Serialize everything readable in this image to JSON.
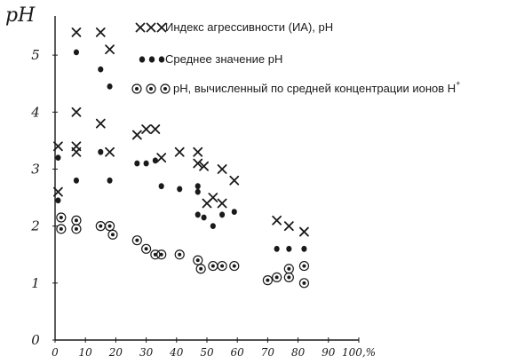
{
  "chart_data": {
    "type": "scatter",
    "ylabel": "pH",
    "xlabel": "",
    "x_unit": "%",
    "xlim": [
      0,
      100
    ],
    "ylim": [
      0,
      5.5
    ],
    "x_ticks": [
      0,
      10,
      20,
      30,
      40,
      50,
      60,
      70,
      80,
      90,
      100
    ],
    "x_tick_labels": [
      "0",
      "10",
      "20",
      "30",
      "40",
      "50",
      "60",
      "70",
      "80",
      "90",
      "100,%"
    ],
    "y_ticks": [
      0,
      1,
      2,
      3,
      4,
      5
    ],
    "y_tick_labels": [
      "0",
      "1",
      "2",
      "3",
      "4",
      "5"
    ],
    "grid": false,
    "legend_position": "top-right",
    "series": [
      {
        "name": "Индекс агрессивности (ИА), pH",
        "marker": "x",
        "points": [
          [
            1,
            3.4
          ],
          [
            1,
            2.6
          ],
          [
            7,
            5.4
          ],
          [
            7,
            4
          ],
          [
            7,
            3.3
          ],
          [
            7,
            3.4
          ],
          [
            15,
            5.4
          ],
          [
            15,
            3.8
          ],
          [
            18,
            5.1
          ],
          [
            18,
            3.3
          ],
          [
            27,
            3.6
          ],
          [
            30,
            3.7
          ],
          [
            33,
            3.7
          ],
          [
            35,
            3.2
          ],
          [
            41,
            3.3
          ],
          [
            47,
            3.3
          ],
          [
            47,
            3.1
          ],
          [
            49,
            3.05
          ],
          [
            52,
            2.5
          ],
          [
            50,
            2.4
          ],
          [
            55,
            2.4
          ],
          [
            55,
            3.0
          ],
          [
            59,
            2.8
          ],
          [
            73,
            2.1
          ],
          [
            77,
            2.0
          ],
          [
            82,
            1.9
          ]
        ]
      },
      {
        "name": "Среднее значение pH",
        "marker": "dot",
        "points": [
          [
            1,
            2.45
          ],
          [
            1,
            3.2
          ],
          [
            7,
            5.05
          ],
          [
            7,
            2.8
          ],
          [
            15,
            4.75
          ],
          [
            15,
            3.3
          ],
          [
            18,
            4.45
          ],
          [
            18,
            2.8
          ],
          [
            27,
            3.1
          ],
          [
            30,
            3.1
          ],
          [
            33,
            3.15
          ],
          [
            35,
            2.7
          ],
          [
            41,
            2.65
          ],
          [
            47,
            2.7
          ],
          [
            47,
            2.6
          ],
          [
            47,
            2.2
          ],
          [
            49,
            2.15
          ],
          [
            52,
            2.0
          ],
          [
            55,
            2.2
          ],
          [
            59,
            2.25
          ],
          [
            73,
            1.6
          ],
          [
            77,
            1.6
          ],
          [
            82,
            1.6
          ]
        ]
      },
      {
        "name": "pH, вычисленный по средней концентрации ионов H⁺",
        "marker": "circled-dot",
        "points": [
          [
            2,
            2.15
          ],
          [
            2,
            1.95
          ],
          [
            7,
            2.1
          ],
          [
            7,
            1.95
          ],
          [
            15,
            2.0
          ],
          [
            18,
            2.0
          ],
          [
            19,
            1.85
          ],
          [
            27,
            1.75
          ],
          [
            30,
            1.6
          ],
          [
            33,
            1.5
          ],
          [
            35,
            1.5
          ],
          [
            41,
            1.5
          ],
          [
            47,
            1.4
          ],
          [
            48,
            1.25
          ],
          [
            52,
            1.3
          ],
          [
            55,
            1.3
          ],
          [
            59,
            1.3
          ],
          [
            70,
            1.05
          ],
          [
            73,
            1.1
          ],
          [
            77,
            1.25
          ],
          [
            77,
            1.1
          ],
          [
            82,
            1.3
          ],
          [
            82,
            1.0
          ]
        ]
      }
    ]
  },
  "legend": [
    {
      "label": "Индекс агрессивности (ИА), pH",
      "marker": "x"
    },
    {
      "label": "Среднее значение pH",
      "marker": "dot"
    },
    {
      "label": "pH, вычисленный по средней концентрации ионов H",
      "sup": "+",
      "marker": "circled-dot"
    }
  ],
  "colors": {
    "ink": "#1a1a1a",
    "paper": "#ffffff"
  }
}
